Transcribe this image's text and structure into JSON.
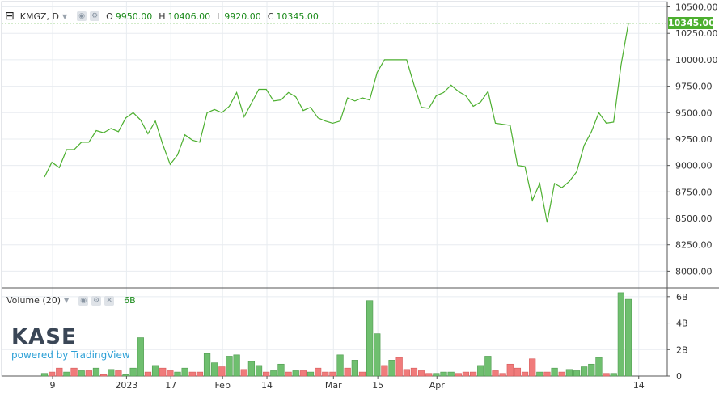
{
  "legend": {
    "collapse_icon": "minus-box-icon",
    "symbol": "KMGZ, D",
    "ohlc": [
      {
        "k": "O",
        "v": "9950.00"
      },
      {
        "k": "H",
        "v": "10406.00"
      },
      {
        "k": "L",
        "v": "9920.00"
      },
      {
        "k": "C",
        "v": "10345.00"
      }
    ]
  },
  "volume_legend": {
    "label": "Volume (20)",
    "last": "6B"
  },
  "last_price_label": "10345.00",
  "logo": {
    "brand": "KASE",
    "powered": "powered by TradingView"
  },
  "colors": {
    "line": "#4caf2f",
    "vol_up": "#6fbf6f",
    "vol_down": "#f07b7b",
    "grid": "#e8ecf0",
    "last_box": "#4caf2f"
  },
  "chart_data": [
    {
      "type": "line",
      "title": "KMGZ, D",
      "x_ticks": [
        "9",
        "2023",
        "17",
        "Feb",
        "14",
        "Mar",
        "15",
        "Apr",
        "14"
      ],
      "y_ticks": [
        "10500.00",
        "10250.00",
        "10000.00",
        "9750.00",
        "9500.00",
        "9250.00",
        "9000.00",
        "8750.00",
        "8500.00",
        "8250.00",
        "8000.00"
      ],
      "ylim": [
        7850,
        10550
      ],
      "grid": true,
      "values": [
        8890,
        9030,
        8980,
        9150,
        9150,
        9220,
        9220,
        9330,
        9310,
        9350,
        9320,
        9450,
        9500,
        9430,
        9300,
        9420,
        9200,
        9010,
        9100,
        9290,
        9240,
        9220,
        9500,
        9530,
        9500,
        9560,
        9690,
        9460,
        9590,
        9720,
        9720,
        9610,
        9620,
        9690,
        9650,
        9520,
        9550,
        9450,
        9420,
        9400,
        9420,
        9640,
        9610,
        9640,
        9620,
        9880,
        10000,
        10000,
        10000,
        10000,
        9760,
        9550,
        9540,
        9660,
        9690,
        9760,
        9700,
        9660,
        9560,
        9600,
        9700,
        9400,
        9390,
        9380,
        9000,
        8990,
        8670,
        8830,
        8460,
        8830,
        8790,
        8850,
        8940,
        9190,
        9320,
        9500,
        9400,
        9410,
        9950,
        10345
      ]
    },
    {
      "type": "bar",
      "title": "Volume (20)",
      "y_ticks": [
        "6B",
        "4B",
        "2B",
        "0"
      ],
      "ylim": [
        0,
        6.6
      ],
      "values": [
        0.2,
        0.3,
        0.6,
        0.3,
        0.6,
        0.4,
        0.4,
        0.6,
        0.1,
        0.5,
        0.4,
        0.1,
        0.6,
        2.9,
        0.3,
        0.8,
        0.6,
        0.4,
        0.3,
        0.6,
        0.3,
        0.3,
        1.7,
        1.0,
        0.7,
        1.5,
        1.6,
        0.5,
        1.1,
        0.8,
        0.3,
        0.4,
        0.9,
        0.3,
        0.4,
        0.4,
        0.3,
        0.6,
        0.3,
        0.3,
        1.6,
        0.6,
        1.2,
        0.3,
        5.7,
        3.2,
        0.8,
        1.2,
        1.4,
        0.5,
        0.6,
        0.4,
        0.2,
        0.2,
        0.3,
        0.3,
        0.2,
        0.3,
        0.3,
        0.8,
        1.5,
        0.4,
        0.2,
        0.9,
        0.6,
        0.3,
        1.3,
        0.3,
        0.3,
        0.6,
        0.3,
        0.5,
        0.4,
        0.7,
        0.9,
        1.4,
        0.2,
        0.2,
        6.3,
        5.8
      ],
      "up": [
        1,
        0,
        0,
        1,
        0,
        1,
        0,
        1,
        0,
        1,
        0,
        1,
        1,
        1,
        0,
        1,
        0,
        0,
        1,
        1,
        0,
        0,
        1,
        1,
        0,
        1,
        1,
        0,
        1,
        1,
        0,
        1,
        1,
        0,
        1,
        0,
        1,
        0,
        0,
        0,
        1,
        0,
        1,
        0,
        1,
        1,
        0,
        1,
        0,
        0,
        0,
        0,
        0,
        1,
        1,
        1,
        0,
        0,
        0,
        1,
        1,
        0,
        0,
        0,
        0,
        0,
        0,
        1,
        0,
        1,
        0,
        1,
        1,
        1,
        1,
        1,
        0,
        1,
        1,
        1
      ]
    }
  ]
}
